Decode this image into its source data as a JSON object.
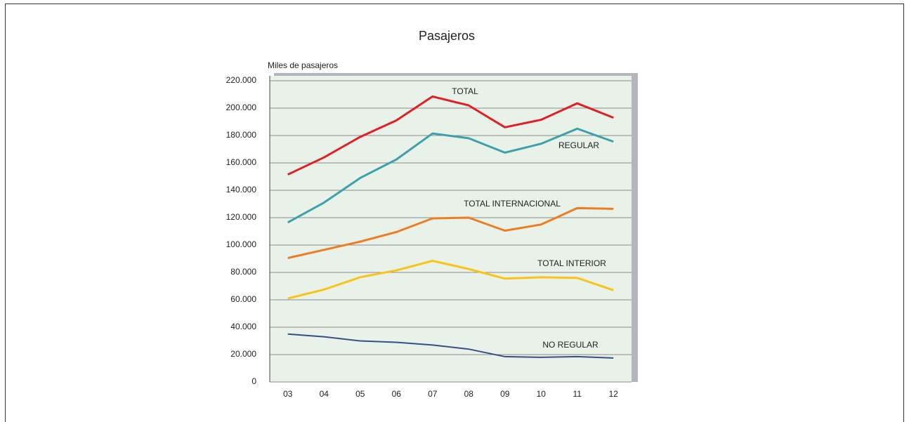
{
  "chart_data": {
    "type": "line",
    "title": "Pasajeros",
    "y_label": "Miles de pasajeros",
    "categories": [
      "03",
      "04",
      "05",
      "06",
      "07",
      "08",
      "09",
      "10",
      "11",
      "12"
    ],
    "series": [
      {
        "name": "TOTAL",
        "color": "#e31e25",
        "values": [
          151500,
          164000,
          179000,
          191000,
          208500,
          202000,
          186000,
          191500,
          203500,
          193000
        ]
      },
      {
        "name": "REGULAR",
        "color": "#3fa0ad",
        "values": [
          116500,
          131000,
          149000,
          162500,
          181500,
          178000,
          167500,
          174000,
          185000,
          175500
        ]
      },
      {
        "name": "TOTAL INTERNACIONAL",
        "color": "#ee7d22",
        "values": [
          90500,
          96500,
          102500,
          109500,
          119500,
          120000,
          110500,
          115000,
          127000,
          126500
        ]
      },
      {
        "name": "TOTAL INTERIOR",
        "color": "#f9c41a",
        "values": [
          61000,
          67500,
          76500,
          81500,
          88500,
          82500,
          75500,
          76500,
          76000,
          67000
        ]
      },
      {
        "name": "NO REGULAR",
        "color": "#34508a",
        "values": [
          35000,
          33000,
          30000,
          29000,
          27000,
          24000,
          18500,
          18000,
          18500,
          17500
        ]
      }
    ],
    "ylim": [
      0,
      220000
    ],
    "yticks": [
      0,
      {
        "value": 20000,
        "label": "20.000"
      },
      {
        "value": 40000,
        "label": "40.000"
      },
      {
        "value": 60000,
        "label": "60.000"
      },
      {
        "value": 80000,
        "label": "80.000"
      },
      {
        "value": 100000,
        "label": "100.000"
      },
      {
        "value": 120000,
        "label": "120.000"
      },
      {
        "value": 140000,
        "label": "140.000"
      },
      {
        "value": 160000,
        "label": "160.000"
      },
      {
        "value": 180000,
        "label": "180.000"
      },
      {
        "value": 200000,
        "label": "200.000"
      },
      {
        "value": 220000,
        "label": "220.000"
      }
    ],
    "grid": true
  }
}
